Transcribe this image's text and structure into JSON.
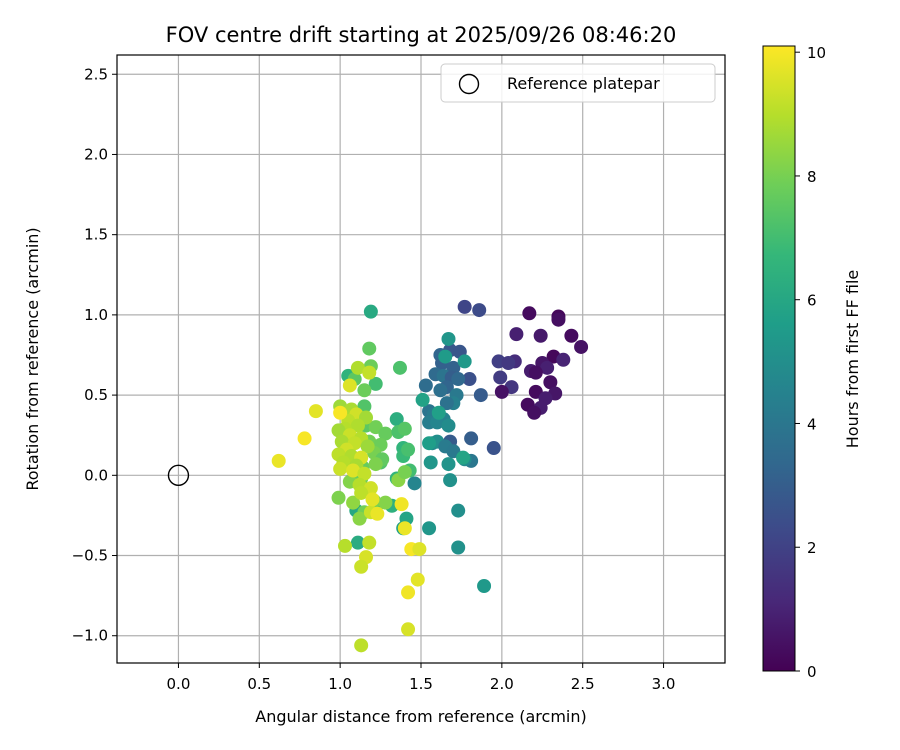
{
  "chart_data": {
    "type": "scatter",
    "title": "FOV centre drift starting at 2025/09/26 08:46:20",
    "xlabel": "Angular distance from reference (arcmin)",
    "ylabel": "Rotation from reference (arcmin)",
    "xlim": [
      -0.38,
      3.38
    ],
    "ylim": [
      -1.17,
      2.62
    ],
    "xticks": [
      0.0,
      0.5,
      1.0,
      1.5,
      2.0,
      2.5,
      3.0
    ],
    "xtick_labels": [
      "0.0",
      "0.5",
      "1.0",
      "1.5",
      "2.0",
      "2.5",
      "3.0"
    ],
    "yticks": [
      -1.0,
      -0.5,
      0.0,
      0.5,
      1.0,
      1.5,
      2.0,
      2.5
    ],
    "ytick_labels": [
      "−1.0",
      "−0.5",
      "0.0",
      "0.5",
      "1.0",
      "1.5",
      "2.0",
      "2.5"
    ],
    "grid": true,
    "legend": {
      "placement": "top-right",
      "entries": [
        {
          "label": "Reference platepar",
          "marker": "open-circle"
        }
      ]
    },
    "reference_point": {
      "x": 0.0,
      "y": 0.0,
      "label": "Reference platepar"
    },
    "colorbar": {
      "label": "Hours from first FF file",
      "colormap": "viridis",
      "range": [
        0,
        10.1
      ],
      "ticks": [
        0,
        2,
        4,
        6,
        8,
        10
      ],
      "tick_labels": [
        "0",
        "2",
        "4",
        "6",
        "8",
        "10"
      ]
    },
    "colormap_stops": [
      "#440154",
      "#482878",
      "#3e4989",
      "#31688e",
      "#26828e",
      "#1f9e89",
      "#35b779",
      "#6ece58",
      "#b5de2b",
      "#fde725"
    ],
    "points": [
      {
        "x": 2.17,
        "y": 1.01,
        "h": 0.3
      },
      {
        "x": 2.35,
        "y": 0.99,
        "h": 0.2
      },
      {
        "x": 2.35,
        "y": 0.97,
        "h": 0.4
      },
      {
        "x": 2.09,
        "y": 0.88,
        "h": 0.9
      },
      {
        "x": 2.24,
        "y": 0.87,
        "h": 0.7
      },
      {
        "x": 2.43,
        "y": 0.87,
        "h": 0.3
      },
      {
        "x": 2.49,
        "y": 0.8,
        "h": 0.5
      },
      {
        "x": 2.32,
        "y": 0.74,
        "h": 0.2
      },
      {
        "x": 2.38,
        "y": 0.72,
        "h": 1.0
      },
      {
        "x": 2.08,
        "y": 0.71,
        "h": 1.3
      },
      {
        "x": 2.25,
        "y": 0.7,
        "h": 0.6
      },
      {
        "x": 2.28,
        "y": 0.67,
        "h": 0.9
      },
      {
        "x": 2.18,
        "y": 0.65,
        "h": 0.8
      },
      {
        "x": 2.21,
        "y": 0.64,
        "h": 0.4
      },
      {
        "x": 2.3,
        "y": 0.58,
        "h": 0.4
      },
      {
        "x": 2.06,
        "y": 0.55,
        "h": 1.6
      },
      {
        "x": 2.21,
        "y": 0.52,
        "h": 0.3
      },
      {
        "x": 2.0,
        "y": 0.52,
        "h": 0.5
      },
      {
        "x": 2.33,
        "y": 0.51,
        "h": 0.6
      },
      {
        "x": 2.27,
        "y": 0.48,
        "h": 0.8
      },
      {
        "x": 2.16,
        "y": 0.44,
        "h": 0.3
      },
      {
        "x": 2.24,
        "y": 0.42,
        "h": 0.8
      },
      {
        "x": 2.2,
        "y": 0.39,
        "h": 0.4
      },
      {
        "x": 1.77,
        "y": 1.05,
        "h": 2.1
      },
      {
        "x": 1.86,
        "y": 1.03,
        "h": 2.3
      },
      {
        "x": 1.98,
        "y": 0.71,
        "h": 1.9
      },
      {
        "x": 2.04,
        "y": 0.7,
        "h": 1.7
      },
      {
        "x": 1.99,
        "y": 0.61,
        "h": 1.8
      },
      {
        "x": 1.8,
        "y": 0.6,
        "h": 2.5
      },
      {
        "x": 1.87,
        "y": 0.5,
        "h": 2.9
      },
      {
        "x": 1.95,
        "y": 0.17,
        "h": 2.6
      },
      {
        "x": 1.81,
        "y": 0.23,
        "h": 3.0
      },
      {
        "x": 1.68,
        "y": 0.21,
        "h": 2.9
      },
      {
        "x": 1.62,
        "y": 0.75,
        "h": 3.3
      },
      {
        "x": 1.68,
        "y": 0.78,
        "h": 2.8
      },
      {
        "x": 1.74,
        "y": 0.77,
        "h": 2.7
      },
      {
        "x": 1.63,
        "y": 0.7,
        "h": 3.1
      },
      {
        "x": 1.7,
        "y": 0.67,
        "h": 3.2
      },
      {
        "x": 1.59,
        "y": 0.63,
        "h": 3.5
      },
      {
        "x": 1.64,
        "y": 0.62,
        "h": 3.9
      },
      {
        "x": 1.69,
        "y": 0.61,
        "h": 3.0
      },
      {
        "x": 1.73,
        "y": 0.6,
        "h": 3.4
      },
      {
        "x": 1.53,
        "y": 0.56,
        "h": 3.6
      },
      {
        "x": 1.66,
        "y": 0.55,
        "h": 3.3
      },
      {
        "x": 1.62,
        "y": 0.53,
        "h": 3.7
      },
      {
        "x": 1.72,
        "y": 0.5,
        "h": 4.1
      },
      {
        "x": 1.7,
        "y": 0.45,
        "h": 4.4
      },
      {
        "x": 1.66,
        "y": 0.45,
        "h": 3.8
      },
      {
        "x": 1.55,
        "y": 0.4,
        "h": 3.9
      },
      {
        "x": 1.58,
        "y": 0.38,
        "h": 4.2
      },
      {
        "x": 1.64,
        "y": 0.35,
        "h": 4.5
      },
      {
        "x": 1.55,
        "y": 0.33,
        "h": 4.3
      },
      {
        "x": 1.6,
        "y": 0.33,
        "h": 4.6
      },
      {
        "x": 1.67,
        "y": 0.31,
        "h": 4.9
      },
      {
        "x": 1.57,
        "y": 0.2,
        "h": 4.7
      },
      {
        "x": 1.6,
        "y": 0.21,
        "h": 5.0
      },
      {
        "x": 1.65,
        "y": 0.18,
        "h": 4.2
      },
      {
        "x": 1.7,
        "y": 0.15,
        "h": 4.1
      },
      {
        "x": 1.81,
        "y": 0.09,
        "h": 4.0
      },
      {
        "x": 1.77,
        "y": 0.1,
        "h": 4.8
      },
      {
        "x": 1.67,
        "y": 0.07,
        "h": 5.2
      },
      {
        "x": 1.56,
        "y": 0.08,
        "h": 5.3
      },
      {
        "x": 1.46,
        "y": -0.05,
        "h": 4.6
      },
      {
        "x": 1.68,
        "y": -0.03,
        "h": 5.1
      },
      {
        "x": 1.73,
        "y": -0.22,
        "h": 5.0
      },
      {
        "x": 1.55,
        "y": -0.33,
        "h": 5.3
      },
      {
        "x": 1.73,
        "y": -0.45,
        "h": 5.1
      },
      {
        "x": 1.89,
        "y": -0.69,
        "h": 5.4
      },
      {
        "x": 1.67,
        "y": 0.85,
        "h": 5.3
      },
      {
        "x": 1.77,
        "y": 0.71,
        "h": 5.4
      },
      {
        "x": 1.65,
        "y": 0.74,
        "h": 5.5
      },
      {
        "x": 1.51,
        "y": 0.47,
        "h": 5.8
      },
      {
        "x": 1.55,
        "y": 0.2,
        "h": 5.6
      },
      {
        "x": 1.61,
        "y": 0.39,
        "h": 5.7
      },
      {
        "x": 1.76,
        "y": 0.11,
        "h": 5.9
      },
      {
        "x": 1.39,
        "y": -0.33,
        "h": 5.7
      },
      {
        "x": 1.41,
        "y": -0.27,
        "h": 5.9
      },
      {
        "x": 1.19,
        "y": 1.02,
        "h": 6.1
      },
      {
        "x": 1.35,
        "y": 0.35,
        "h": 6.3
      },
      {
        "x": 1.1,
        "y": -0.22,
        "h": 6.0
      },
      {
        "x": 1.11,
        "y": -0.42,
        "h": 6.2
      },
      {
        "x": 1.32,
        "y": -0.19,
        "h": 6.4
      },
      {
        "x": 1.05,
        "y": 0.62,
        "h": 6.5
      },
      {
        "x": 1.39,
        "y": 0.17,
        "h": 6.6
      },
      {
        "x": 1.35,
        "y": -0.02,
        "h": 6.6
      },
      {
        "x": 1.39,
        "y": 0.12,
        "h": 6.8
      },
      {
        "x": 1.37,
        "y": 0.67,
        "h": 7.2
      },
      {
        "x": 1.22,
        "y": 0.57,
        "h": 7.0
      },
      {
        "x": 1.42,
        "y": 0.16,
        "h": 7.1
      },
      {
        "x": 1.43,
        "y": 0.03,
        "h": 7.0
      },
      {
        "x": 1.22,
        "y": -0.2,
        "h": 7.4
      },
      {
        "x": 1.25,
        "y": 0.08,
        "h": 7.3
      },
      {
        "x": 1.18,
        "y": 0.79,
        "h": 7.6
      },
      {
        "x": 1.19,
        "y": 0.68,
        "h": 7.8
      },
      {
        "x": 1.09,
        "y": 0.6,
        "h": 7.5
      },
      {
        "x": 1.15,
        "y": 0.53,
        "h": 7.8
      },
      {
        "x": 1.15,
        "y": 0.43,
        "h": 7.3
      },
      {
        "x": 1.16,
        "y": 0.31,
        "h": 7.5
      },
      {
        "x": 1.22,
        "y": 0.3,
        "h": 7.9
      },
      {
        "x": 1.28,
        "y": 0.26,
        "h": 7.7
      },
      {
        "x": 1.36,
        "y": 0.27,
        "h": 7.2
      },
      {
        "x": 1.4,
        "y": 0.29,
        "h": 7.4
      },
      {
        "x": 1.12,
        "y": 0.22,
        "h": 7.6
      },
      {
        "x": 1.18,
        "y": 0.21,
        "h": 7.9
      },
      {
        "x": 1.25,
        "y": 0.19,
        "h": 7.8
      },
      {
        "x": 1.21,
        "y": 0.14,
        "h": 8.0
      },
      {
        "x": 1.26,
        "y": 0.1,
        "h": 7.6
      },
      {
        "x": 1.14,
        "y": 0.05,
        "h": 7.7
      },
      {
        "x": 1.09,
        "y": 0.02,
        "h": 7.9
      },
      {
        "x": 1.22,
        "y": 0.07,
        "h": 8.1
      },
      {
        "x": 1.13,
        "y": -0.02,
        "h": 7.8
      },
      {
        "x": 1.06,
        "y": -0.04,
        "h": 8.2
      },
      {
        "x": 1.17,
        "y": -0.1,
        "h": 7.7
      },
      {
        "x": 1.21,
        "y": -0.16,
        "h": 8.0
      },
      {
        "x": 1.15,
        "y": -0.23,
        "h": 7.9
      },
      {
        "x": 1.12,
        "y": -0.27,
        "h": 8.3
      },
      {
        "x": 0.99,
        "y": -0.14,
        "h": 8.1
      },
      {
        "x": 1.08,
        "y": -0.17,
        "h": 8.4
      },
      {
        "x": 1.28,
        "y": -0.17,
        "h": 8.2
      },
      {
        "x": 1.36,
        "y": -0.03,
        "h": 8.3
      },
      {
        "x": 1.4,
        "y": 0.02,
        "h": 8.0
      },
      {
        "x": 1.11,
        "y": 0.67,
        "h": 8.9
      },
      {
        "x": 1.18,
        "y": 0.64,
        "h": 9.2
      },
      {
        "x": 1.06,
        "y": 0.56,
        "h": 9.6
      },
      {
        "x": 1.0,
        "y": 0.43,
        "h": 8.6
      },
      {
        "x": 1.07,
        "y": 0.41,
        "h": 8.8
      },
      {
        "x": 1.1,
        "y": 0.38,
        "h": 9.4
      },
      {
        "x": 1.16,
        "y": 0.36,
        "h": 8.7
      },
      {
        "x": 1.05,
        "y": 0.34,
        "h": 9.1
      },
      {
        "x": 1.11,
        "y": 0.31,
        "h": 8.9
      },
      {
        "x": 1.03,
        "y": 0.29,
        "h": 9.0
      },
      {
        "x": 0.99,
        "y": 0.28,
        "h": 8.7
      },
      {
        "x": 1.06,
        "y": 0.25,
        "h": 9.3
      },
      {
        "x": 1.13,
        "y": 0.23,
        "h": 9.0
      },
      {
        "x": 1.01,
        "y": 0.21,
        "h": 8.8
      },
      {
        "x": 1.09,
        "y": 0.2,
        "h": 9.2
      },
      {
        "x": 1.17,
        "y": 0.18,
        "h": 8.6
      },
      {
        "x": 1.04,
        "y": 0.16,
        "h": 9.4
      },
      {
        "x": 0.99,
        "y": 0.13,
        "h": 9.1
      },
      {
        "x": 1.07,
        "y": 0.12,
        "h": 8.9
      },
      {
        "x": 1.13,
        "y": 0.11,
        "h": 9.5
      },
      {
        "x": 1.02,
        "y": 0.08,
        "h": 9.0
      },
      {
        "x": 1.1,
        "y": 0.06,
        "h": 8.8
      },
      {
        "x": 1.0,
        "y": 0.04,
        "h": 9.3
      },
      {
        "x": 1.08,
        "y": 0.03,
        "h": 9.6
      },
      {
        "x": 1.15,
        "y": 0.01,
        "h": 9.2
      },
      {
        "x": 1.12,
        "y": -0.06,
        "h": 9.0
      },
      {
        "x": 1.19,
        "y": -0.08,
        "h": 9.4
      },
      {
        "x": 1.13,
        "y": -0.11,
        "h": 9.1
      },
      {
        "x": 1.19,
        "y": -0.23,
        "h": 9.3
      },
      {
        "x": 1.03,
        "y": -0.44,
        "h": 9.0
      },
      {
        "x": 1.18,
        "y": -0.42,
        "h": 9.2
      },
      {
        "x": 1.16,
        "y": -0.51,
        "h": 9.5
      },
      {
        "x": 1.13,
        "y": -0.57,
        "h": 9.3
      },
      {
        "x": 1.13,
        "y": -1.06,
        "h": 9.1
      },
      {
        "x": 0.85,
        "y": 0.4,
        "h": 9.7
      },
      {
        "x": 0.78,
        "y": 0.23,
        "h": 10.0
      },
      {
        "x": 0.62,
        "y": 0.09,
        "h": 9.8
      },
      {
        "x": 1.4,
        "y": -0.33,
        "h": 9.8
      },
      {
        "x": 1.44,
        "y": -0.46,
        "h": 10.0
      },
      {
        "x": 1.49,
        "y": -0.46,
        "h": 9.6
      },
      {
        "x": 1.48,
        "y": -0.65,
        "h": 9.7
      },
      {
        "x": 1.42,
        "y": -0.73,
        "h": 9.9
      },
      {
        "x": 1.42,
        "y": -0.96,
        "h": 9.5
      },
      {
        "x": 1.38,
        "y": -0.18,
        "h": 9.9
      },
      {
        "x": 1.23,
        "y": -0.24,
        "h": 9.8
      },
      {
        "x": 1.0,
        "y": 0.39,
        "h": 10.0
      },
      {
        "x": 1.2,
        "y": -0.15,
        "h": 9.7
      }
    ]
  }
}
